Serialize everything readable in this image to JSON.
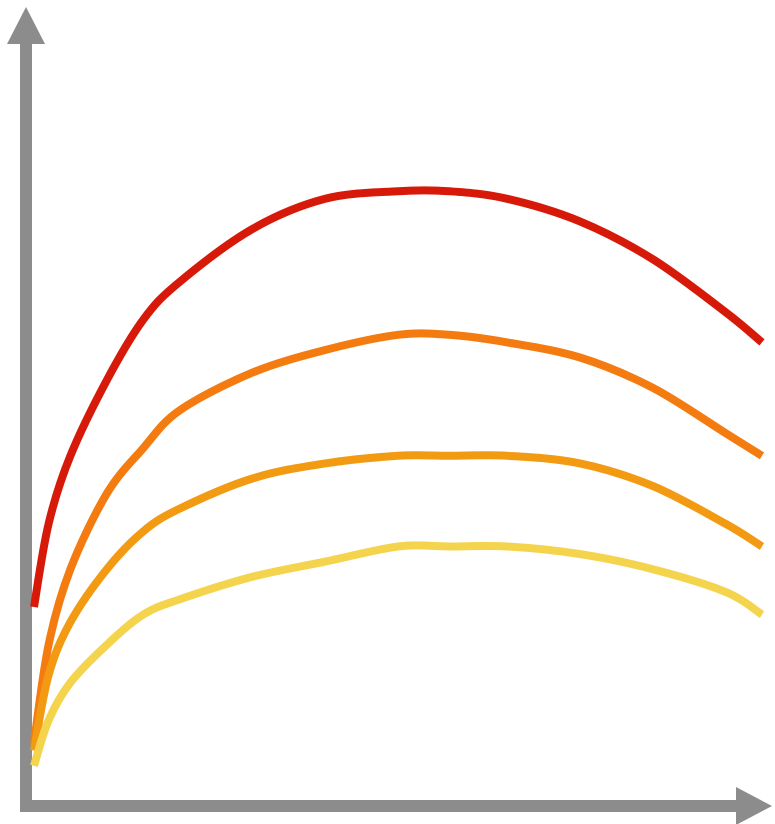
{
  "chart_data": {
    "type": "line",
    "title": "",
    "xlabel": "",
    "ylabel": "",
    "grid": false,
    "legend": "none",
    "xlim": [
      0,
      1
    ],
    "ylim": [
      0,
      1
    ],
    "axis_color": "#8c8c8c",
    "series": [
      {
        "color": "#d7190a",
        "x": [
          0,
          0.02,
          0.05,
          0.1,
          0.15,
          0.2,
          0.3,
          0.4,
          0.5,
          0.57,
          0.65,
          0.75,
          0.85,
          0.95,
          1.0
        ],
        "y": [
          0.25,
          0.36,
          0.45,
          0.55,
          0.63,
          0.68,
          0.75,
          0.79,
          0.8,
          0.8,
          0.79,
          0.76,
          0.71,
          0.64,
          0.6
        ]
      },
      {
        "color": "#f47b10",
        "x": [
          0,
          0.02,
          0.05,
          0.1,
          0.15,
          0.2,
          0.3,
          0.4,
          0.5,
          0.57,
          0.65,
          0.75,
          0.85,
          0.95,
          1.0
        ],
        "y": [
          0.07,
          0.2,
          0.3,
          0.4,
          0.46,
          0.51,
          0.56,
          0.59,
          0.61,
          0.61,
          0.6,
          0.58,
          0.54,
          0.48,
          0.45
        ]
      },
      {
        "color": "#f39a13",
        "x": [
          0,
          0.02,
          0.05,
          0.1,
          0.15,
          0.2,
          0.3,
          0.4,
          0.5,
          0.57,
          0.65,
          0.75,
          0.85,
          0.95,
          1.0
        ],
        "y": [
          0.06,
          0.16,
          0.23,
          0.3,
          0.35,
          0.38,
          0.42,
          0.44,
          0.45,
          0.45,
          0.45,
          0.44,
          0.41,
          0.36,
          0.33
        ]
      },
      {
        "color": "#f5d44d",
        "x": [
          0,
          0.02,
          0.05,
          0.1,
          0.15,
          0.2,
          0.3,
          0.4,
          0.5,
          0.57,
          0.65,
          0.75,
          0.85,
          0.95,
          1.0
        ],
        "y": [
          0.04,
          0.1,
          0.15,
          0.2,
          0.24,
          0.26,
          0.29,
          0.31,
          0.33,
          0.33,
          0.33,
          0.32,
          0.3,
          0.27,
          0.24
        ]
      }
    ]
  }
}
